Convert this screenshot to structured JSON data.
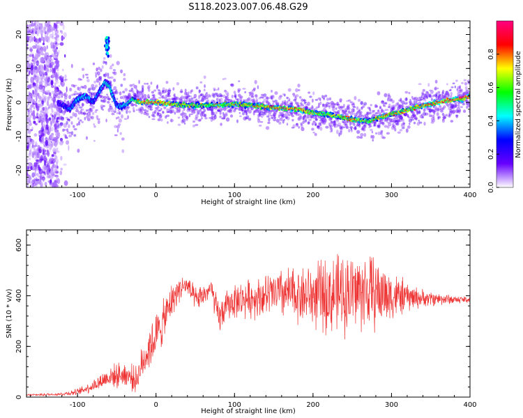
{
  "figure": {
    "title": "S118.2023.007.06.48.G29"
  },
  "chart_data": [
    {
      "type": "heatmap",
      "xlabel": "Height of straight line (km)",
      "ylabel": "Frequency (Hz)",
      "xlim": [
        -165,
        400
      ],
      "ylim": [
        -25,
        24
      ],
      "xticks": [
        -100,
        0,
        100,
        200,
        300,
        400
      ],
      "yticks": [
        -20,
        -10,
        0,
        10,
        20
      ],
      "colorbar": {
        "label": "Normalized spectral amplitude",
        "range": [
          0,
          1
        ],
        "ticks": [
          "0.0",
          "0.2",
          "0.4",
          "0.6",
          "0.8"
        ],
        "colors": [
          "#ffffff",
          "#6600ff",
          "#0000ff",
          "#00ffff",
          "#00ff00",
          "#ffff00",
          "#ff0000",
          "#ff0080"
        ]
      },
      "ridge": {
        "x": [
          -125,
          -110,
          -100,
          -90,
          -80,
          -70,
          -65,
          -60,
          -55,
          -50,
          -40,
          -30,
          -20,
          0,
          50,
          100,
          150,
          180,
          200,
          230,
          250,
          270,
          290,
          310,
          330,
          350,
          370,
          390,
          400
        ],
        "y": [
          0,
          -2,
          1,
          2,
          0,
          4,
          6,
          5,
          2,
          -1,
          -1,
          1,
          0,
          0,
          -1,
          -0.5,
          -1.5,
          -2,
          -3,
          -4,
          -5,
          -5.5,
          -4,
          -3,
          -1.5,
          -0.5,
          0.5,
          1,
          2
        ]
      },
      "ridge_amplitude": [
        0.25,
        0.35,
        0.45,
        0.4,
        0.35,
        0.4,
        0.45,
        0.5,
        0.45,
        0.35,
        0.45,
        0.6,
        0.9,
        0.95,
        0.7,
        0.75,
        0.85,
        0.95,
        0.75,
        0.7,
        0.9,
        0.7,
        0.9,
        0.8,
        0.85,
        0.9,
        0.95,
        0.95,
        0.9
      ],
      "burst": {
        "x": -62,
        "y": 17,
        "amplitude": 0.45
      },
      "noise_region_x": [
        -165,
        -125
      ]
    },
    {
      "type": "line",
      "xlabel": "Height of straight line (km)",
      "ylabel": "SNR (10 * v/v)",
      "xlim": [
        -165,
        400
      ],
      "ylim": [
        0,
        660
      ],
      "xticks": [
        -100,
        0,
        100,
        200,
        300,
        400
      ],
      "yticks": [
        0,
        200,
        400,
        600
      ],
      "color": "#ee3333",
      "envelope": {
        "x": [
          -165,
          -140,
          -120,
          -100,
          -80,
          -60,
          -40,
          -25,
          -15,
          -10,
          0,
          10,
          20,
          30,
          40,
          50,
          60,
          70,
          80,
          90,
          100,
          120,
          140,
          160,
          180,
          200,
          220,
          240,
          260,
          280,
          300,
          320,
          340,
          360,
          380,
          400
        ],
        "mean": [
          8,
          10,
          12,
          20,
          45,
          80,
          90,
          70,
          150,
          190,
          240,
          300,
          380,
          430,
          440,
          380,
          400,
          430,
          310,
          360,
          380,
          390,
          400,
          410,
          405,
          400,
          400,
          410,
          420,
          410,
          400,
          395,
          390,
          388,
          385,
          385
        ],
        "spread": [
          5,
          6,
          8,
          15,
          30,
          50,
          60,
          60,
          90,
          110,
          110,
          100,
          80,
          60,
          50,
          60,
          50,
          50,
          80,
          70,
          80,
          90,
          100,
          120,
          130,
          150,
          180,
          190,
          190,
          170,
          120,
          70,
          40,
          30,
          20,
          15
        ]
      },
      "n_samples": 1400
    }
  ]
}
